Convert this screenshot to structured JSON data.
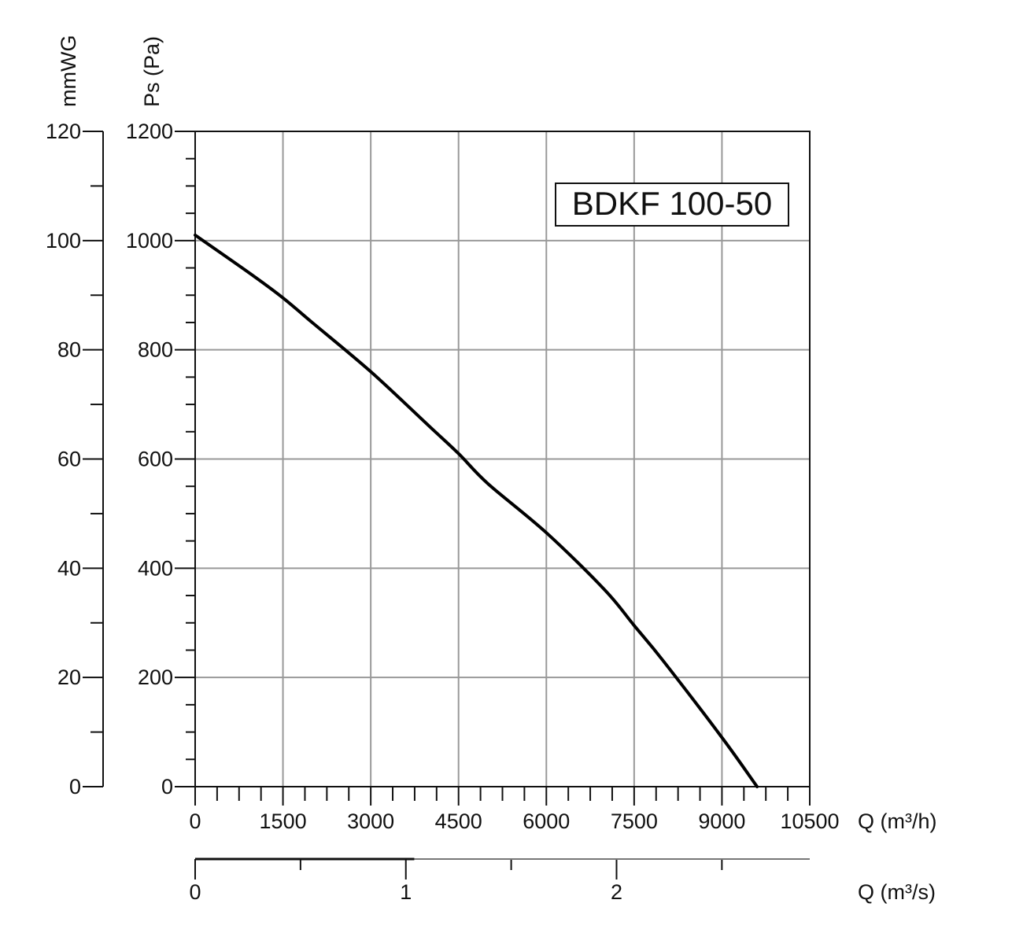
{
  "chart_data": {
    "type": "line",
    "title": "BDKF 100-50",
    "xlabel": "Q (m³/h)",
    "ylabel": "Ps (Pa)",
    "x2label": "Q (m³/s)",
    "y2label": "mmWG",
    "xlim": [
      0,
      10500
    ],
    "ylim": [
      0,
      1200
    ],
    "y2lim": [
      0,
      120
    ],
    "x2lim_m3s": [
      0,
      2.917
    ],
    "x_ticks": [
      "0",
      "1500",
      "3000",
      "4500",
      "6000",
      "7500",
      "9000",
      "10500"
    ],
    "x_tick_values": [
      0,
      1500,
      3000,
      4500,
      6000,
      7500,
      9000,
      10500
    ],
    "y_ticks": [
      "0",
      "200",
      "400",
      "600",
      "800",
      "1000",
      "1200"
    ],
    "y_tick_values": [
      0,
      200,
      400,
      600,
      800,
      1000,
      1200
    ],
    "y2_ticks": [
      "0",
      "20",
      "40",
      "60",
      "80",
      "100",
      "120"
    ],
    "y2_tick_values": [
      0,
      20,
      40,
      60,
      80,
      100,
      120
    ],
    "x2_ticks": [
      "0",
      "1",
      "2"
    ],
    "x2_tick_values": [
      0,
      1,
      2
    ],
    "grid": true,
    "series": [
      {
        "x": [
          0,
          1000,
          1500,
          2000,
          3000,
          4000,
          4500,
          5000,
          6000,
          7000,
          7500,
          8000,
          9000,
          9600
        ],
        "y": [
          1010,
          935,
          895,
          850,
          760,
          660,
          610,
          555,
          465,
          360,
          295,
          230,
          90,
          0
        ]
      }
    ]
  },
  "colors": {
    "curve": "#000000",
    "grid": "#999999",
    "axis": "#111111"
  }
}
